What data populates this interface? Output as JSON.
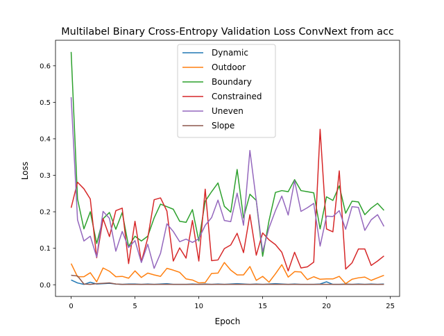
{
  "chart_data": {
    "type": "line",
    "title": "Multilabel Binary Cross-Entropy Validation Loss ConvNext from acc",
    "xlabel": "Epoch",
    "ylabel": "Loss",
    "xlim": [
      -1.225,
      25.725
    ],
    "ylim": [
      -0.032,
      0.67
    ],
    "xticks": [
      0,
      5,
      10,
      15,
      20,
      25
    ],
    "yticks": [
      0.0,
      0.1,
      0.2,
      0.3,
      0.4,
      0.5,
      0.6
    ],
    "xtick_labels": [
      "0",
      "5",
      "10",
      "15",
      "20",
      "25"
    ],
    "ytick_labels": [
      "0.0",
      "0.1",
      "0.2",
      "0.3",
      "0.4",
      "0.5",
      "0.6"
    ],
    "grid": false,
    "legend_position": "upper center",
    "x": [
      0,
      0.5,
      1,
      1.5,
      2,
      2.5,
      3,
      3.5,
      4,
      4.5,
      5,
      5.5,
      6,
      6.5,
      7,
      7.5,
      8,
      8.5,
      9,
      9.5,
      10,
      10.5,
      11,
      11.5,
      12,
      12.5,
      13,
      13.5,
      14,
      14.5,
      15,
      15.5,
      16,
      16.5,
      17,
      17.5,
      18,
      18.5,
      19,
      19.5,
      20,
      20.5,
      21,
      21.5,
      22,
      22.5,
      23,
      23.5,
      24,
      24.5
    ],
    "series": [
      {
        "name": "Dynamic",
        "color": "#1f77b4",
        "values": [
          0.013,
          0.005,
          0.001,
          0.007,
          0.002,
          0.003,
          0.004,
          0.002,
          0.001,
          0.002,
          0.002,
          0.001,
          0.002,
          0.001,
          0.002,
          0.003,
          0.001,
          0.001,
          0.001,
          0.002,
          0.001,
          0.002,
          0.001,
          0.002,
          0.001,
          0.002,
          0.003,
          0.002,
          0.001,
          0.002,
          0.001,
          0.002,
          0.003,
          0.002,
          0.001,
          0.002,
          0.001,
          0.001,
          0.001,
          0.002,
          0.008,
          0.001,
          0.001,
          0.002,
          0.001,
          0.002,
          0.001,
          0.002,
          0.001,
          0.002
        ]
      },
      {
        "name": "Outdoor",
        "color": "#ff7f0e",
        "values": [
          0.058,
          0.022,
          0.022,
          0.033,
          0.008,
          0.046,
          0.037,
          0.022,
          0.023,
          0.018,
          0.038,
          0.02,
          0.032,
          0.027,
          0.023,
          0.045,
          0.04,
          0.034,
          0.016,
          0.013,
          0.005,
          0.006,
          0.031,
          0.032,
          0.061,
          0.04,
          0.027,
          0.027,
          0.05,
          0.012,
          0.023,
          0.007,
          0.03,
          0.055,
          0.021,
          0.036,
          0.035,
          0.014,
          0.022,
          0.015,
          0.016,
          0.016,
          0.023,
          0.003,
          0.015,
          0.019,
          0.021,
          0.012,
          0.019,
          0.026
        ]
      },
      {
        "name": "Boundary",
        "color": "#2ca02c",
        "values": [
          0.638,
          0.235,
          0.153,
          0.2,
          0.113,
          0.181,
          0.198,
          0.152,
          0.198,
          0.105,
          0.133,
          0.12,
          0.133,
          0.183,
          0.221,
          0.214,
          0.207,
          0.174,
          0.171,
          0.206,
          0.12,
          0.229,
          0.255,
          0.279,
          0.215,
          0.199,
          0.316,
          0.183,
          0.248,
          0.231,
          0.078,
          0.176,
          0.253,
          0.258,
          0.255,
          0.288,
          0.258,
          0.255,
          0.252,
          0.153,
          0.241,
          0.231,
          0.271,
          0.196,
          0.229,
          0.227,
          0.192,
          0.21,
          0.223,
          0.204
        ]
      },
      {
        "name": "Constrained",
        "color": "#d62728",
        "values": [
          0.211,
          0.281,
          0.263,
          0.235,
          0.074,
          0.181,
          0.132,
          0.203,
          0.21,
          0.058,
          0.174,
          0.063,
          0.128,
          0.233,
          0.238,
          0.202,
          0.065,
          0.101,
          0.073,
          0.176,
          0.065,
          0.262,
          0.066,
          0.068,
          0.099,
          0.109,
          0.141,
          0.088,
          0.192,
          0.081,
          0.142,
          0.123,
          0.11,
          0.089,
          0.038,
          0.089,
          0.046,
          0.049,
          0.062,
          0.426,
          0.153,
          0.145,
          0.312,
          0.043,
          0.06,
          0.098,
          0.098,
          0.053,
          0.065,
          0.079
        ]
      },
      {
        "name": "Uneven",
        "color": "#9467bd",
        "values": [
          0.514,
          0.178,
          0.12,
          0.133,
          0.076,
          0.201,
          0.182,
          0.092,
          0.146,
          0.102,
          0.121,
          0.061,
          0.111,
          0.045,
          0.086,
          0.167,
          0.146,
          0.118,
          0.125,
          0.116,
          0.126,
          0.163,
          0.184,
          0.232,
          0.176,
          0.173,
          0.251,
          0.163,
          0.368,
          0.231,
          0.091,
          0.156,
          0.203,
          0.243,
          0.191,
          0.285,
          0.201,
          0.211,
          0.223,
          0.106,
          0.188,
          0.187,
          0.203,
          0.152,
          0.214,
          0.212,
          0.149,
          0.178,
          0.192,
          0.16
        ]
      },
      {
        "name": "Slope",
        "color": "#8c564b",
        "values": [
          0.026,
          0.024,
          0.002,
          0.001,
          0.003,
          0.004,
          0.005,
          0.002,
          0.001,
          0.001,
          0.001,
          0.001,
          0.001,
          0.001,
          0.001,
          0.001,
          0.001,
          0.001,
          0.001,
          0.001,
          0.001,
          0.001,
          0.001,
          0.001,
          0.001,
          0.001,
          0.001,
          0.001,
          0.001,
          0.001,
          0.001,
          0.001,
          0.001,
          0.001,
          0.001,
          0.001,
          0.001,
          0.001,
          0.001,
          0.001,
          0.001,
          0.001,
          0.001,
          0.001,
          0.001,
          0.001,
          0.001,
          0.001,
          0.001,
          0.001
        ]
      }
    ]
  }
}
